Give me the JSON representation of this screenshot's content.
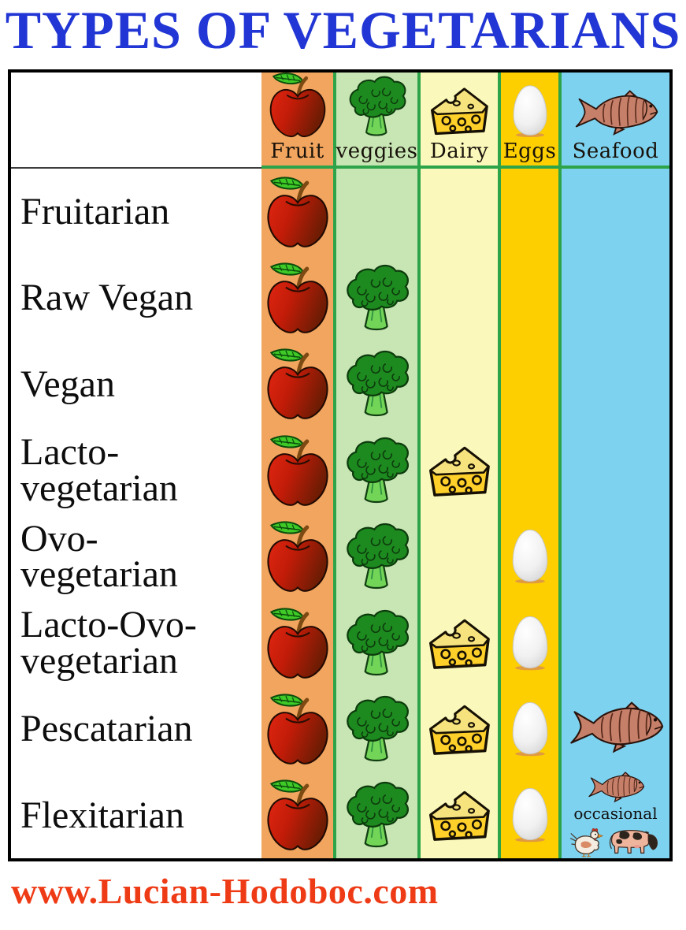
{
  "title": "TYPES OF VEGETARIANS",
  "footer": {
    "url": "www.Lucian-Hodoboc.com"
  },
  "colors": {
    "title": "#2136d4",
    "footer": "#ee3b16",
    "separator": "#2ea44a",
    "fruit_bg": "#f2a55f",
    "veggies_bg": "#c8e5b4",
    "dairy_bg": "#fbf8bb",
    "eggs_bg": "#fecf00",
    "seafood_bg": "#7dd2f0",
    "table_border": "#000000"
  },
  "table": {
    "columns": [
      {
        "id": "fruit",
        "label": "Fruit",
        "icon": "apple-icon"
      },
      {
        "id": "veggies",
        "label": "veggies",
        "icon": "broccoli-icon"
      },
      {
        "id": "dairy",
        "label": "Dairy",
        "icon": "cheese-icon"
      },
      {
        "id": "eggs",
        "label": "Eggs",
        "icon": "egg-icon"
      },
      {
        "id": "seafood",
        "label": "Seafood",
        "icon": "salmon-icon"
      }
    ],
    "rows": [
      {
        "label": "Fruitarian",
        "foods": [
          "fruit"
        ]
      },
      {
        "label": "Raw Vegan",
        "foods": [
          "fruit",
          "veggies"
        ]
      },
      {
        "label": "Vegan",
        "foods": [
          "fruit",
          "veggies"
        ]
      },
      {
        "label": "Lacto-\nvegetarian",
        "foods": [
          "fruit",
          "veggies",
          "dairy"
        ]
      },
      {
        "label": "Ovo-\nvegetarian",
        "foods": [
          "fruit",
          "veggies",
          "eggs"
        ]
      },
      {
        "label": "Lacto-Ovo-\nvegetarian",
        "foods": [
          "fruit",
          "veggies",
          "dairy",
          "eggs"
        ]
      },
      {
        "label": "Pescatarian",
        "foods": [
          "fruit",
          "veggies",
          "dairy",
          "eggs",
          "seafood"
        ]
      },
      {
        "label": "Flexitarian",
        "foods": [
          "fruit",
          "veggies",
          "dairy",
          "eggs",
          "seafood_occasional"
        ]
      }
    ],
    "occasional_label": "occasional",
    "occasional_icons": [
      "salmon-icon",
      "chicken-icon",
      "cow-icon"
    ]
  }
}
